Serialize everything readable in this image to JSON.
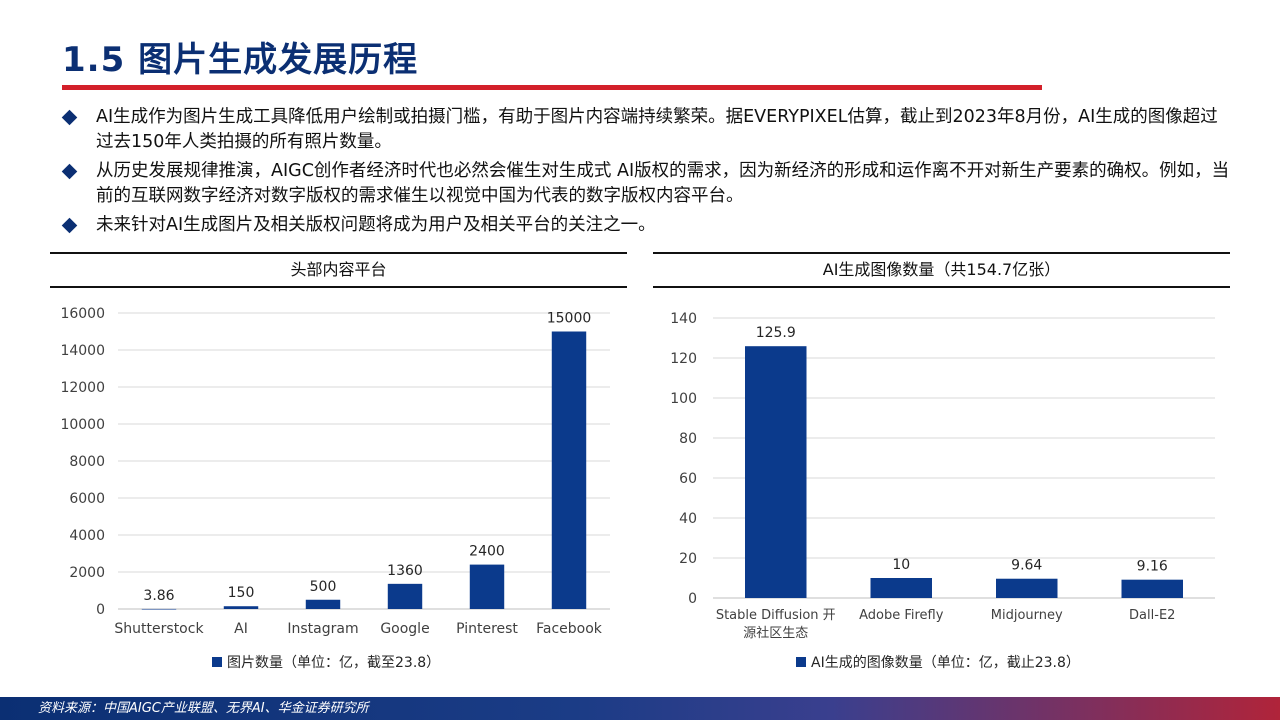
{
  "page": {
    "title": "1.5 图片生成发展历程",
    "bullets": [
      "AI生成作为图片生成工具降低用户绘制或拍摄门槛，有助于图片内容端持续繁荣。据EVERYPIXEL估算，截止到2023年8月份，AI生成的图像超过过去150年人类拍摄的所有照片数量。",
      "从历史发展规律推演，AIGC创作者经济时代也必然会催生对生成式 AI版权的需求，因为新经济的形成和运作离不开对新生产要素的确权。例如，当前的互联网数字经济对数字版权的需求催生以视觉中国为代表的数字版权内容平台。",
      "未来针对AI生成图片及相关版权问题将成为用户及相关平台的关注之一。"
    ],
    "footer": "资料来源：中国AIGC产业联盟、无界AI、华金证券研究所"
  },
  "colors": {
    "title": "#0b2f73",
    "accent_red": "#d3202a",
    "bar": "#0b3a8c",
    "grid": "#d9d9d9",
    "axis_text": "#404040"
  },
  "chart_data": [
    {
      "type": "bar",
      "title": "头部内容平台",
      "categories": [
        "Shutterstock",
        "AI",
        "Instagram",
        "Google",
        "Pinterest",
        "Facebook"
      ],
      "series": [
        {
          "name": "图片数量（单位：亿，截至23.8）",
          "values": [
            3.86,
            150,
            500,
            1360,
            2400,
            15000
          ],
          "labels": [
            "3.86",
            "150",
            "500",
            "1360",
            "2400",
            "15000"
          ]
        }
      ],
      "ylim": [
        0,
        16000
      ],
      "yticks": [
        0,
        2000,
        4000,
        6000,
        8000,
        10000,
        12000,
        14000,
        16000
      ],
      "grid": true,
      "legend": "bottom"
    },
    {
      "type": "bar",
      "title": "AI生成图像数量（共154.7亿张）",
      "categories": [
        "Stable Diffusion 开源社区生态",
        "Adobe Firefly",
        "Midjourney",
        "Dall-E2"
      ],
      "series": [
        {
          "name": "AI生成的图像数量（单位：亿，截止23.8）",
          "values": [
            125.9,
            10,
            9.64,
            9.16
          ],
          "labels": [
            "125.9",
            "10",
            "9.64",
            "9.16"
          ]
        }
      ],
      "ylim": [
        0,
        140
      ],
      "yticks": [
        0,
        20,
        40,
        60,
        80,
        100,
        120,
        140
      ],
      "grid": true,
      "legend": "bottom"
    }
  ]
}
